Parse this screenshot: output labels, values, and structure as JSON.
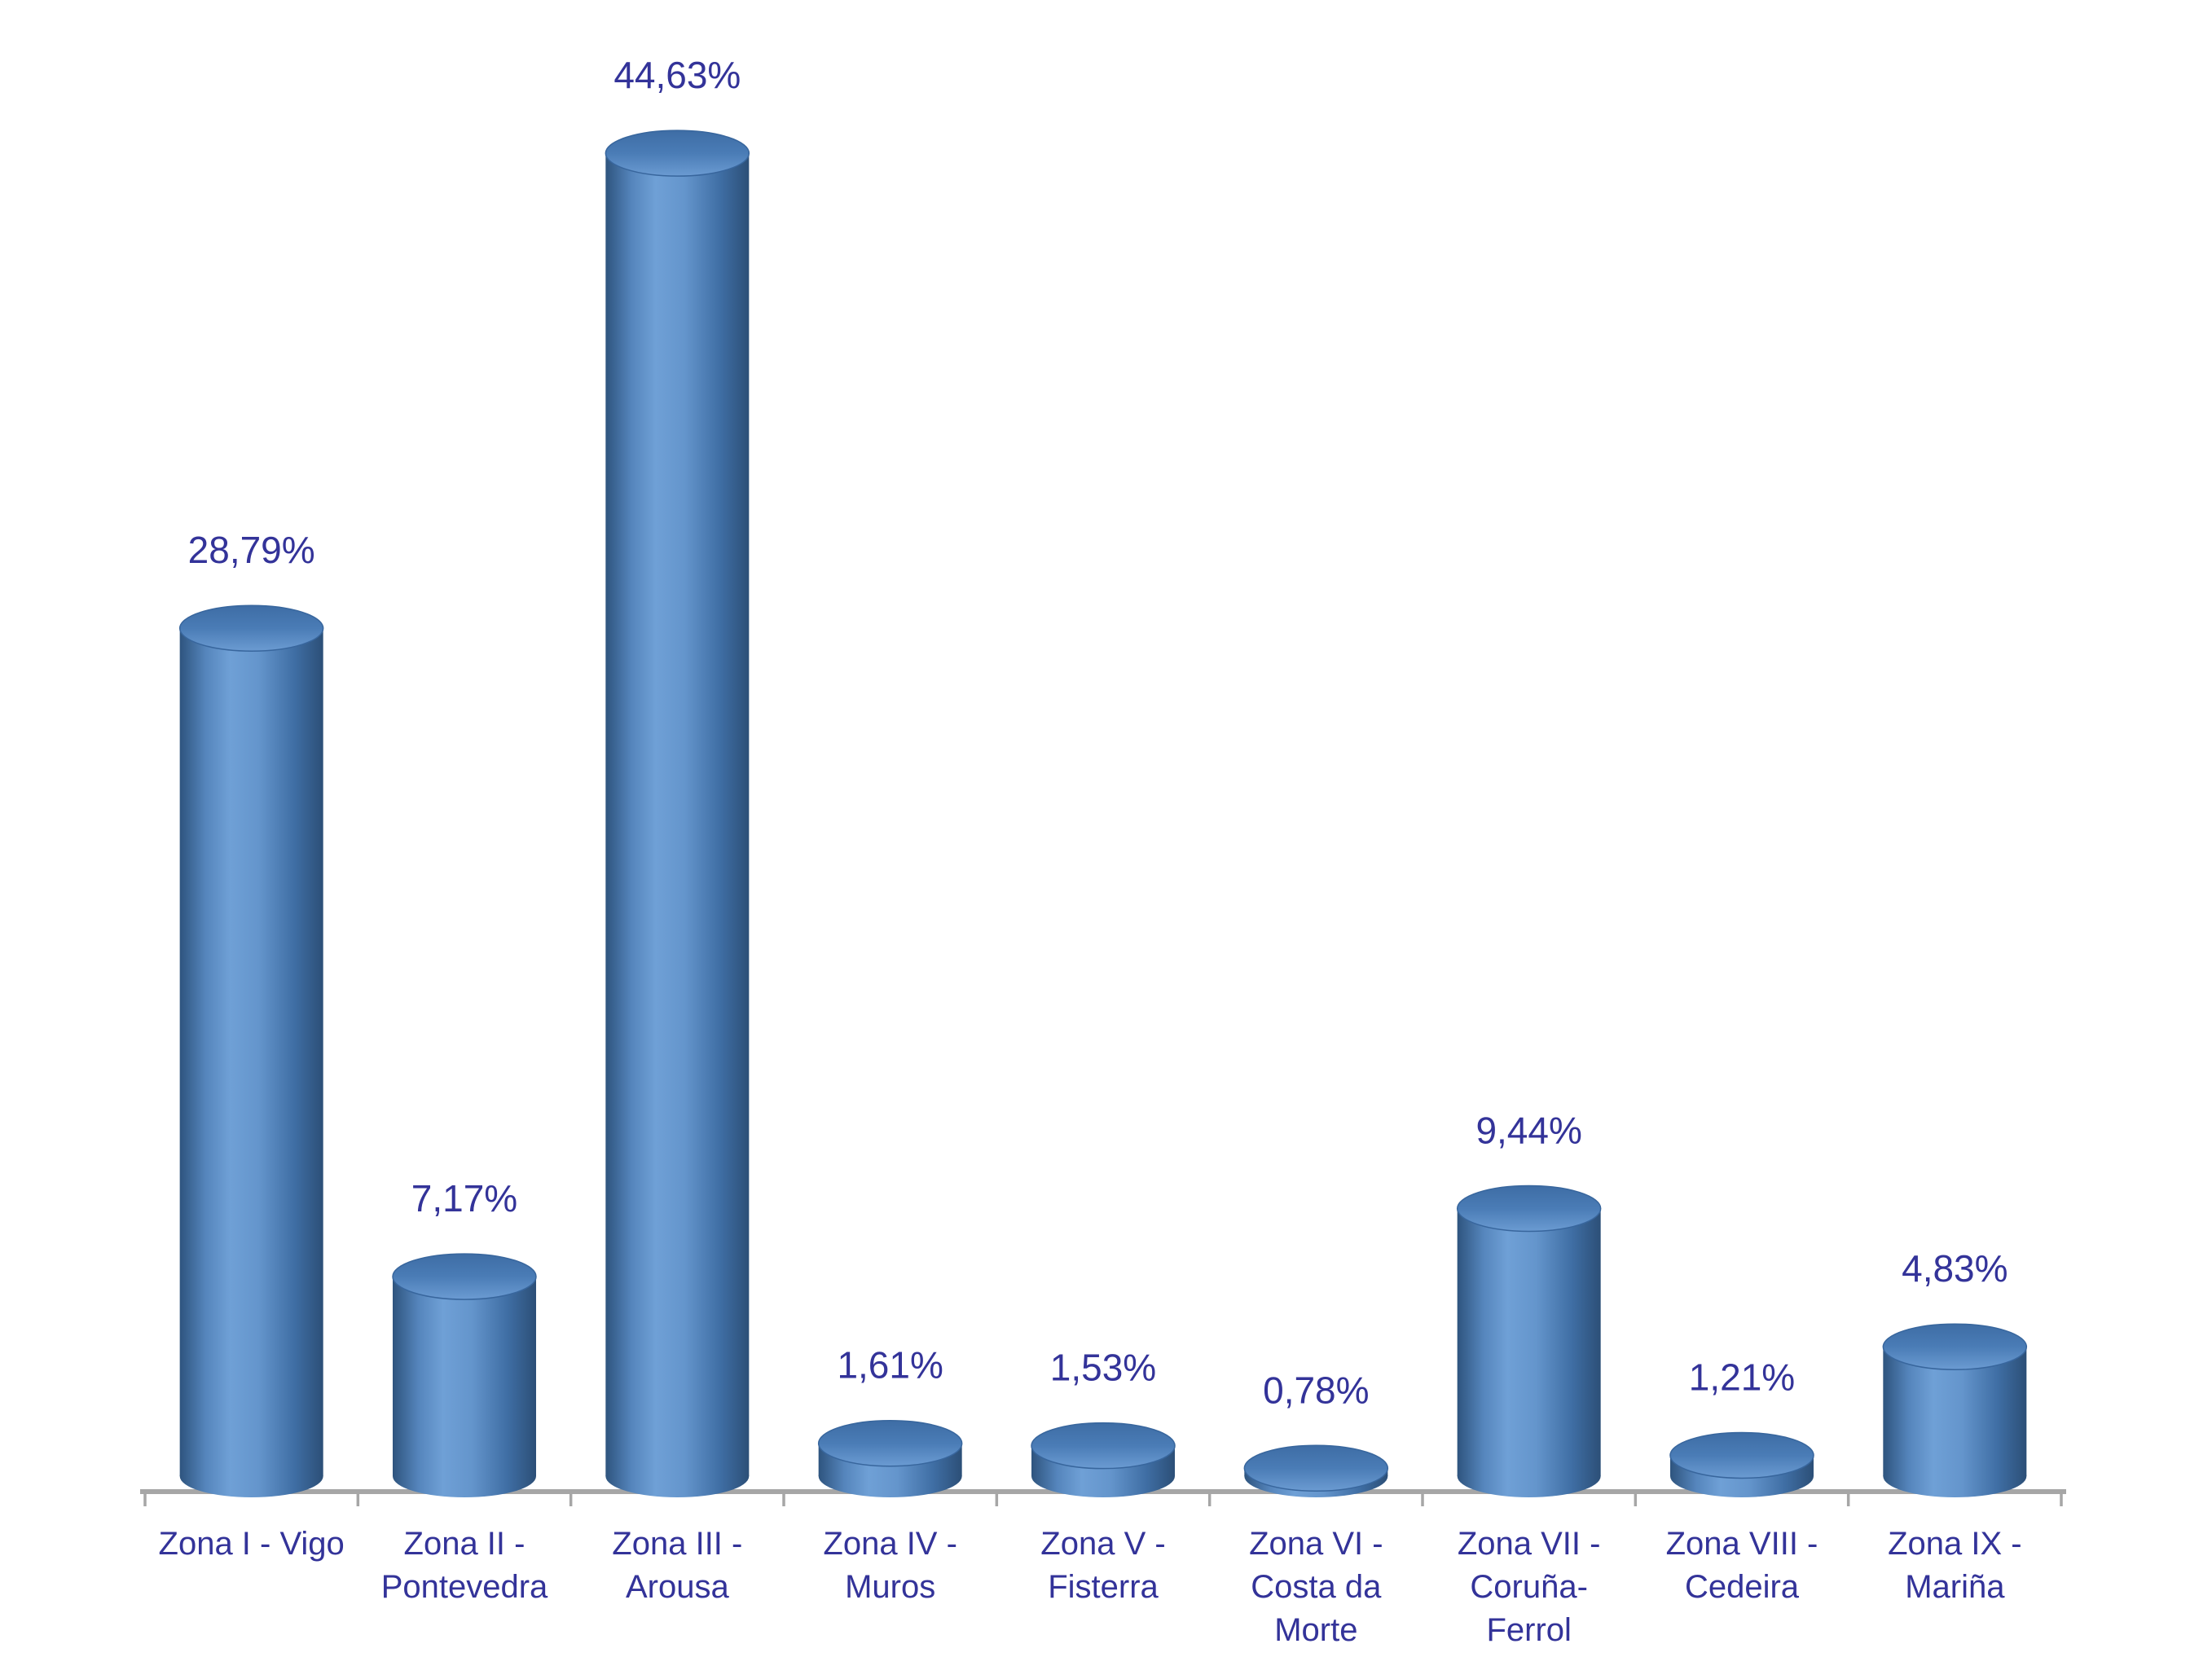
{
  "chart_data": {
    "type": "bar",
    "subtype": "3d-cylinder-column",
    "title": "",
    "xlabel": "",
    "ylabel": "",
    "unit": "%",
    "grid": false,
    "legend": false,
    "y_axis_visible": false,
    "ylim": [
      0,
      45
    ],
    "categories": [
      "Zona I - Vigo",
      "Zona II - Pontevedra",
      "Zona III - Arousa",
      "Zona IV - Muros",
      "Zona V - Fisterra",
      "Zona VI - Costa da Morte",
      "Zona VII - Coruña-Ferrol",
      "Zona VIII - Cedeira",
      "Zona IX - Mariña"
    ],
    "category_label_lines": [
      [
        "Zona I - Vigo"
      ],
      [
        "Zona II -",
        "Pontevedra"
      ],
      [
        "Zona III -",
        "Arousa"
      ],
      [
        "Zona IV -",
        "Muros"
      ],
      [
        "Zona V -",
        "Fisterra"
      ],
      [
        "Zona VI -",
        "Costa da",
        "Morte"
      ],
      [
        "Zona VII -",
        "Coruña-",
        "Ferrol"
      ],
      [
        "Zona VIII -",
        "Cedeira"
      ],
      [
        "Zona IX -",
        "Mariña"
      ]
    ],
    "values": [
      28.79,
      7.17,
      44.63,
      1.61,
      1.53,
      0.78,
      9.44,
      1.21,
      4.83
    ],
    "value_labels": [
      "28,79%",
      "7,17%",
      "44,63%",
      "1,61%",
      "1,53%",
      "0,78%",
      "9,44%",
      "1,21%",
      "4,83%"
    ],
    "colors": {
      "background": "#FFFFFF",
      "label_text": "#333399",
      "axis_line": "#A6A6A6",
      "bar_base": "#4F81BD",
      "bar_edge_dark_left": "#2E547E",
      "bar_edge_dark_right": "#2C4F77",
      "bar_highlight": "#6FA0D6",
      "bar_top_dark": "#3E6DA5",
      "bar_top_light": "#6B9BD2",
      "bar_top_rim": "#38669D"
    }
  }
}
